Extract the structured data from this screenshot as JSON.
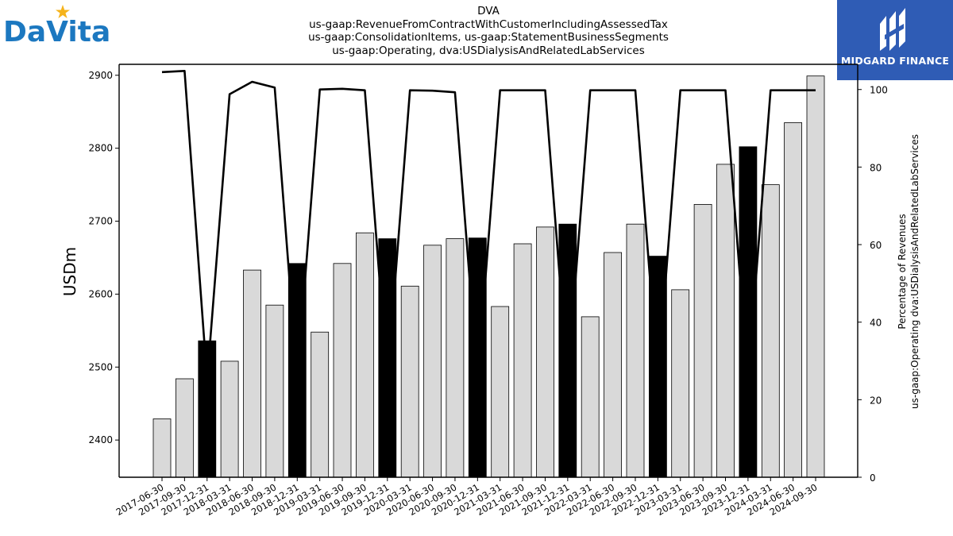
{
  "logos": {
    "left_brand": "DaVita",
    "right_brand": "MIDGARD FINANCE",
    "right_bg": "#2f5cb5"
  },
  "chart_data": {
    "type": "bar",
    "title_lines": [
      "DVA",
      "us-gaap:RevenueFromContractWithCustomerIncludingAssessedTax",
      "us-gaap:ConsolidationItems, us-gaap:StatementBusinessSegments",
      "us-gaap:Operating, dva:USDialysisAndRelatedLabServices"
    ],
    "ylabel": "USDm",
    "y2label_lines": [
      "Percentage of Revenues",
      "us-gaap:Operating dva:USDialysisAndRelatedLabServices"
    ],
    "ylim": [
      2349,
      2915
    ],
    "y2lim": [
      0,
      106.5
    ],
    "yticks": [
      2400,
      2500,
      2600,
      2700,
      2800,
      2900
    ],
    "y2ticks": [
      0,
      20,
      40,
      60,
      80,
      100
    ],
    "categories": [
      "2017-06-30",
      "2017-09-30",
      "2017-12-31",
      "2018-03-31",
      "2018-06-30",
      "2018-09-30",
      "2018-12-31",
      "2019-03-31",
      "2019-06-30",
      "2019-09-30",
      "2019-12-31",
      "2020-03-31",
      "2020-06-30",
      "2020-09-30",
      "2020-12-31",
      "2021-03-31",
      "2021-06-30",
      "2021-09-30",
      "2021-12-31",
      "2022-03-31",
      "2022-06-30",
      "2022-09-30",
      "2022-12-31",
      "2023-03-31",
      "2023-06-30",
      "2023-09-30",
      "2023-12-31",
      "2024-03-31",
      "2024-06-30",
      "2024-09-30"
    ],
    "series": [
      {
        "type": "bar",
        "values": [
          2429,
          2484,
          2536,
          2508,
          2633,
          2585,
          2642,
          2548,
          2642,
          2684,
          2676,
          2611,
          2667,
          2676,
          2677,
          2583,
          2669,
          2692,
          2696,
          2569,
          2657,
          2696,
          2652,
          2606,
          2723,
          2778,
          2802,
          2750,
          2835,
          2899
        ],
        "highlight": [
          false,
          false,
          true,
          false,
          false,
          false,
          true,
          false,
          false,
          false,
          true,
          false,
          false,
          false,
          true,
          false,
          false,
          false,
          true,
          false,
          false,
          false,
          true,
          false,
          false,
          false,
          true,
          false,
          false,
          false
        ],
        "color": "#d9d9d9",
        "highlight_color": "#000000"
      },
      {
        "type": "line",
        "axis": "right",
        "values": [
          104.5,
          104.8,
          25.0,
          98.8,
          102.0,
          100.5,
          25.0,
          100.0,
          100.2,
          99.8,
          25.0,
          99.8,
          99.7,
          99.3,
          25.0,
          99.8,
          99.8,
          99.8,
          25.0,
          99.8,
          99.8,
          99.8,
          25.0,
          99.8,
          99.8,
          99.8,
          25.0,
          99.8,
          99.8,
          99.8
        ],
        "color": "#000000"
      }
    ]
  }
}
